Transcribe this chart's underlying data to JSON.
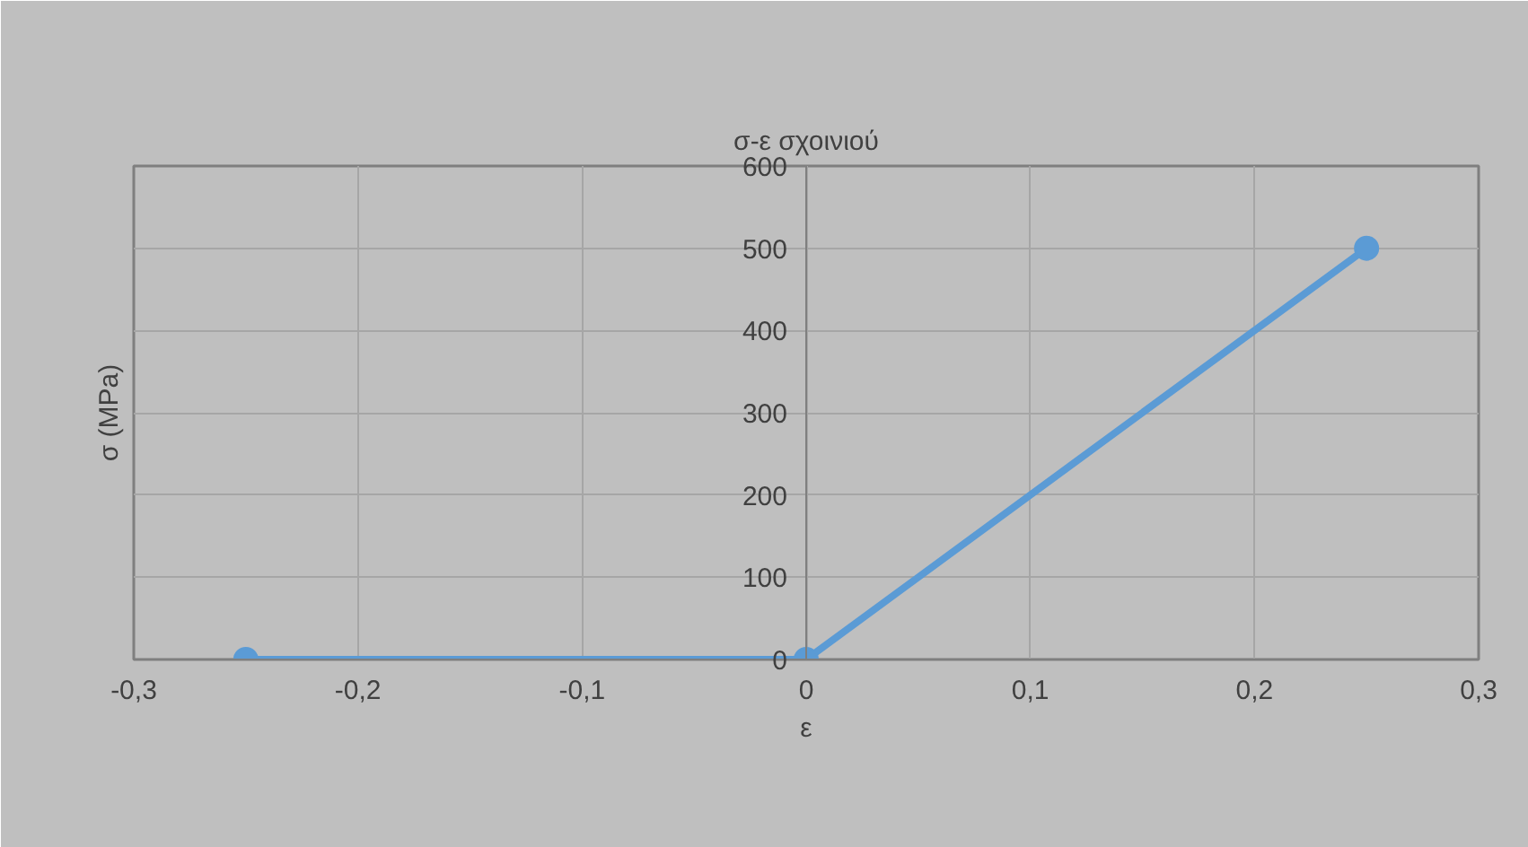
{
  "chart_data": {
    "type": "line",
    "title": "σ-ε σχοινιού",
    "xlabel": "ε",
    "ylabel": "σ (MPa)",
    "x": [
      -0.25,
      0,
      0.25
    ],
    "series": [
      {
        "color": "#5b9bd5",
        "values": [
          0,
          0,
          500
        ]
      }
    ],
    "xlim": [
      -0.3,
      0.3
    ],
    "xticks": [
      {
        "value": -0.3,
        "label": "-0,3"
      },
      {
        "value": -0.2,
        "label": "-0,2"
      },
      {
        "value": -0.1,
        "label": "-0,1"
      },
      0,
      {
        "value": 0.1,
        "label": "0,1"
      },
      {
        "value": 0.2,
        "label": "0,2"
      },
      {
        "value": 0.3,
        "label": "0,3"
      }
    ],
    "ylim": [
      0,
      600
    ],
    "yticks": [
      0,
      100,
      200,
      300,
      400,
      500,
      600
    ],
    "grid": true,
    "marker": "circle",
    "line_style": "solid"
  }
}
